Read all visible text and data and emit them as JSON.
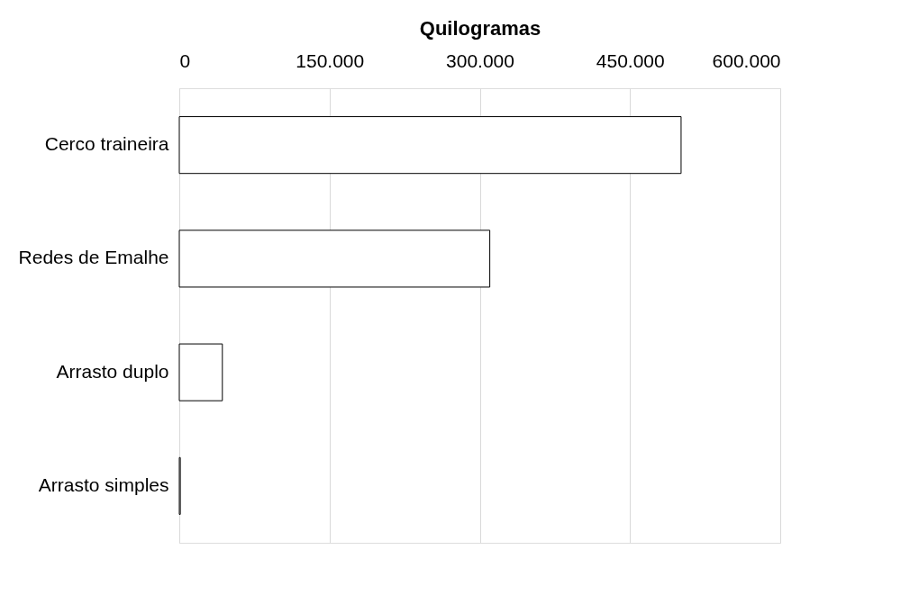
{
  "chart_data": {
    "type": "bar",
    "orientation": "horizontal",
    "xlabel": "Quilogramas",
    "categories": [
      "Cerco traineira",
      "Redes de Emalhe",
      "Arrasto duplo",
      "Arrasto simples"
    ],
    "values": [
      501000,
      310000,
      43000,
      1000
    ],
    "color": "#ffffff",
    "xlim": [
      0,
      600000
    ],
    "xticks": [
      0,
      {
        "value": 150000,
        "label": "150.000"
      },
      {
        "value": 300000,
        "label": "300.000"
      },
      {
        "value": 450000,
        "label": "450.000"
      },
      {
        "value": 600000,
        "label": "600.000"
      }
    ],
    "grid": "x"
  }
}
